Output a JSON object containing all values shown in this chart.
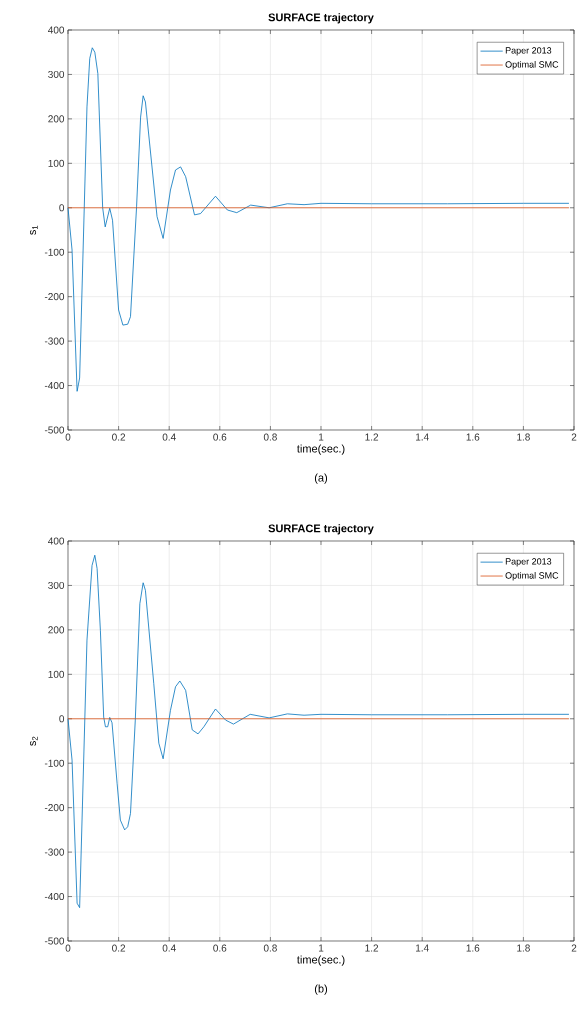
{
  "chart_data": [
    {
      "type": "line",
      "title": "SURFACE trajectory",
      "xlabel": "time(sec.)",
      "ylabel": "s$_{1}$",
      "annotations": [
        "(a)"
      ],
      "xlim": [
        0,
        2
      ],
      "ylim": [
        -500,
        400
      ],
      "xticks": [
        0,
        0.2,
        0.4,
        0.6,
        0.8,
        1,
        1.2,
        1.4,
        1.6,
        1.8,
        2
      ],
      "yticks": [
        -500,
        -400,
        -300,
        -200,
        -100,
        0,
        100,
        200,
        300,
        400
      ],
      "grid": true,
      "legend": "top right",
      "marker": "none",
      "line_style": "solid",
      "series": [
        {
          "name": "Paper 2013",
          "color": "#0072bd",
          "x": [
            0,
            0.016,
            0.036,
            0.046,
            0.075,
            0.086,
            0.096,
            0.106,
            0.118,
            0.137,
            0.147,
            0.165,
            0.176,
            0.2,
            0.217,
            0.236,
            0.247,
            0.271,
            0.287,
            0.297,
            0.306,
            0.352,
            0.376,
            0.405,
            0.425,
            0.445,
            0.465,
            0.5,
            0.524,
            0.583,
            0.63,
            0.667,
            0.722,
            0.795,
            0.867,
            0.933,
            1.0,
            1.2,
            1.5,
            1.8,
            1.98
          ],
          "values": [
            0,
            -95,
            -413,
            -383,
            227,
            336,
            360,
            350,
            302,
            0,
            -43,
            -1,
            -28,
            -230,
            -264,
            -262,
            -245,
            2,
            204,
            252,
            238,
            -20,
            -69,
            40,
            85,
            92,
            70,
            -16,
            -13,
            26,
            -5,
            -11,
            6,
            0,
            9,
            7,
            10,
            9,
            9,
            10,
            10
          ]
        },
        {
          "name": "Optimal SMC",
          "color": "#d95319",
          "x": [
            0,
            1.98
          ],
          "values": [
            0,
            0
          ]
        }
      ]
    },
    {
      "type": "line",
      "title": "SURFACE trajectory",
      "xlabel": "time(sec.)",
      "ylabel": "s$_{2}$",
      "annotations": [
        "(b)"
      ],
      "xlim": [
        0,
        2
      ],
      "ylim": [
        -500,
        400
      ],
      "xticks": [
        0,
        0.2,
        0.4,
        0.6,
        0.8,
        1,
        1.2,
        1.4,
        1.6,
        1.8,
        2
      ],
      "yticks": [
        -500,
        -400,
        -300,
        -200,
        -100,
        0,
        100,
        200,
        300,
        400
      ],
      "grid": true,
      "legend": "top right",
      "marker": "none",
      "line_style": "solid",
      "series": [
        {
          "name": "Paper 2013",
          "color": "#0072bd",
          "x": [
            0,
            0.016,
            0.036,
            0.046,
            0.075,
            0.095,
            0.106,
            0.115,
            0.128,
            0.141,
            0.148,
            0.157,
            0.165,
            0.174,
            0.194,
            0.207,
            0.224,
            0.236,
            0.247,
            0.266,
            0.284,
            0.297,
            0.306,
            0.339,
            0.359,
            0.376,
            0.405,
            0.425,
            0.442,
            0.465,
            0.491,
            0.514,
            0.537,
            0.583,
            0.623,
            0.654,
            0.72,
            0.795,
            0.867,
            0.933,
            1.0,
            1.2,
            1.5,
            1.8,
            1.98
          ],
          "values": [
            0,
            -93,
            -415,
            -425,
            177,
            345,
            368,
            338,
            199,
            4,
            -18,
            -18,
            3,
            -9,
            -145,
            -228,
            -250,
            -243,
            -213,
            -3,
            259,
            306,
            289,
            79,
            -55,
            -90,
            19,
            72,
            85,
            64,
            -25,
            -34,
            -18,
            22,
            -3,
            -12,
            10,
            2,
            11,
            8,
            10,
            9,
            9,
            10,
            10
          ]
        },
        {
          "name": "Optimal SMC",
          "color": "#d95319",
          "x": [
            0,
            1.98
          ],
          "values": [
            0,
            0
          ]
        }
      ]
    }
  ]
}
